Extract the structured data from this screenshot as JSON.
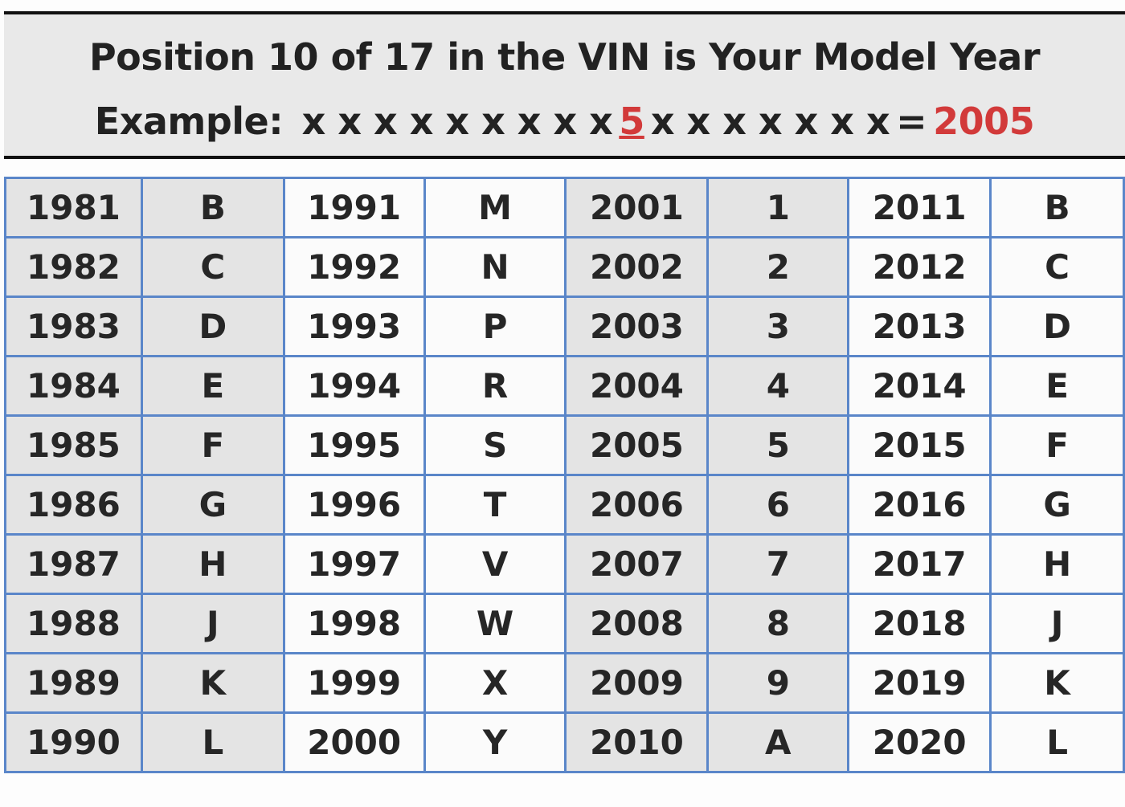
{
  "header": {
    "title": "Position 10 of 17 in the VIN is Your Model Year",
    "example": {
      "label": "Example:",
      "before": "x x x x x x x x x",
      "digit": "5",
      "after": "x x x x x x x",
      "equals": "=",
      "year": "2005"
    }
  },
  "table": {
    "rows": [
      [
        "1981",
        "B",
        "1991",
        "M",
        "2001",
        "1",
        "2011",
        "B"
      ],
      [
        "1982",
        "C",
        "1992",
        "N",
        "2002",
        "2",
        "2012",
        "C"
      ],
      [
        "1983",
        "D",
        "1993",
        "P",
        "2003",
        "3",
        "2013",
        "D"
      ],
      [
        "1984",
        "E",
        "1994",
        "R",
        "2004",
        "4",
        "2014",
        "E"
      ],
      [
        "1985",
        "F",
        "1995",
        "S",
        "2005",
        "5",
        "2015",
        "F"
      ],
      [
        "1986",
        "G",
        "1996",
        "T",
        "2006",
        "6",
        "2016",
        "G"
      ],
      [
        "1987",
        "H",
        "1997",
        "V",
        "2007",
        "7",
        "2017",
        "H"
      ],
      [
        "1988",
        "J",
        "1998",
        "W",
        "2008",
        "8",
        "2018",
        "J"
      ],
      [
        "1989",
        "K",
        "1999",
        "X",
        "2009",
        "9",
        "2019",
        "K"
      ],
      [
        "1990",
        "L",
        "2000",
        "Y",
        "2010",
        "A",
        "2020",
        "L"
      ]
    ]
  }
}
